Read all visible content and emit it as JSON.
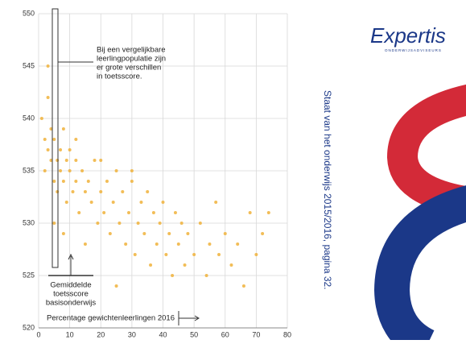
{
  "chart_data": {
    "type": "scatter",
    "x": [
      1,
      2,
      2,
      3,
      3,
      4,
      4,
      5,
      5,
      6,
      6,
      7,
      7,
      8,
      8,
      9,
      9,
      10,
      10,
      11,
      12,
      12,
      13,
      14,
      15,
      16,
      17,
      18,
      19,
      20,
      21,
      22,
      23,
      24,
      25,
      26,
      27,
      28,
      29,
      30,
      31,
      32,
      33,
      34,
      35,
      36,
      37,
      38,
      39,
      40,
      41,
      42,
      43,
      44,
      45,
      46,
      47,
      48,
      50,
      52,
      54,
      55,
      57,
      58,
      60,
      62,
      64,
      66,
      68,
      70,
      72,
      74,
      3,
      5,
      8,
      12,
      15,
      20,
      25,
      30
    ],
    "values": [
      540,
      538,
      535,
      542,
      537,
      536,
      539,
      534,
      538,
      536,
      533,
      537,
      535,
      534,
      539,
      536,
      532,
      535,
      537,
      533,
      534,
      536,
      531,
      535,
      533,
      534,
      532,
      536,
      530,
      533,
      531,
      534,
      529,
      532,
      535,
      530,
      533,
      528,
      531,
      534,
      527,
      530,
      532,
      529,
      533,
      526,
      531,
      528,
      530,
      532,
      527,
      529,
      525,
      531,
      528,
      530,
      526,
      529,
      527,
      530,
      525,
      528,
      532,
      527,
      529,
      526,
      528,
      524,
      531,
      527,
      529,
      531,
      545,
      530,
      529,
      538,
      528,
      536,
      524,
      535
    ],
    "color": "#f0b23a",
    "xlim": [
      0,
      80
    ],
    "ylim": [
      520,
      550
    ],
    "xticks": [
      0,
      10,
      20,
      30,
      40,
      50,
      60,
      70,
      80
    ],
    "yticks": [
      520,
      525,
      530,
      535,
      540,
      545,
      550
    ],
    "grid": true,
    "annotations": [
      [
        "Bij een vergelijkbare",
        "leerlingpopulatie zijn",
        "er grote verschillen",
        "in toetsscore."
      ],
      [
        "Gemiddelde",
        "toetsscore",
        "basisonderwijs"
      ],
      [
        "Percentage gewichtenleerlingen 2016"
      ]
    ]
  },
  "logo": {
    "name": "Expertis",
    "tagline": "ONDERWIJSADVISEURS"
  },
  "side_note": "Staat van het onderwijs 2015/2016, pagina 32."
}
